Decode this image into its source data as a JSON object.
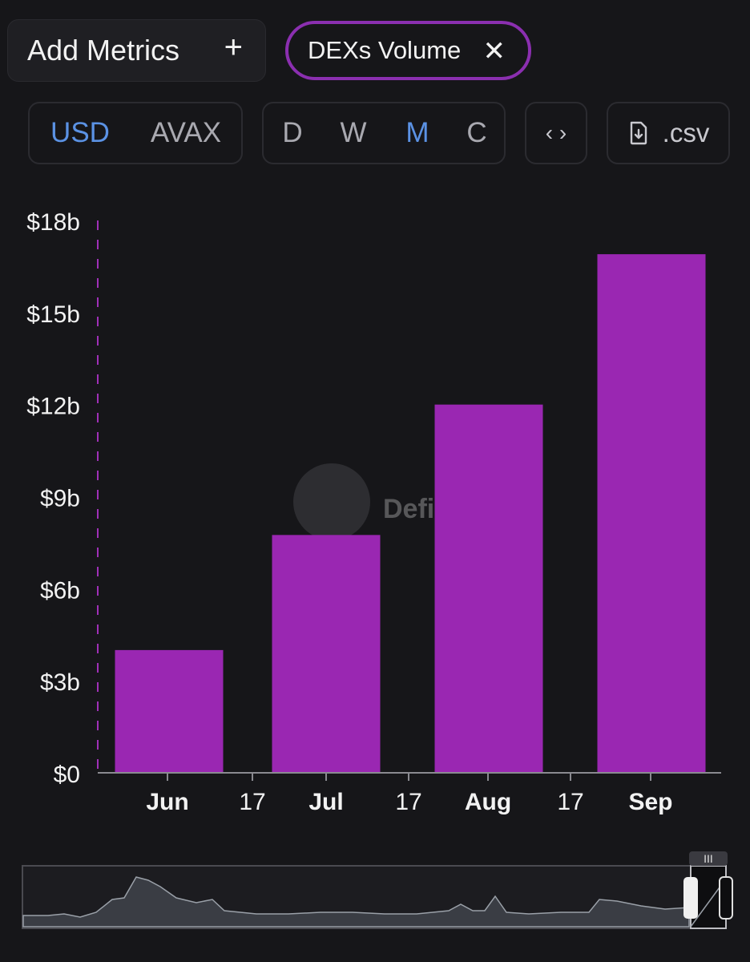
{
  "toolbar": {
    "add_metrics_label": "Add Metrics",
    "metric_chip_label": "DEXs Volume",
    "currency_options": [
      "USD",
      "AVAX"
    ],
    "currency_selected": "USD",
    "interval_options": [
      "D",
      "W",
      "M",
      "C"
    ],
    "interval_selected": "M",
    "embed_icon": "code-icon",
    "csv_label": ".csv"
  },
  "watermark": {
    "text": "DefiLlama"
  },
  "colors": {
    "bar": "#9a27b2",
    "accent": "#5b92e4",
    "chip_border": "#8b2fb0",
    "cursor_line": "#a030b8"
  },
  "chart_data": {
    "type": "bar",
    "title": "",
    "xlabel": "",
    "ylabel": "",
    "categories": [
      "Jun",
      "Jul",
      "Aug",
      "Sep"
    ],
    "values": [
      4.0,
      7.75,
      12.0,
      16.9
    ],
    "unit": "$b",
    "ylim": [
      0,
      18
    ],
    "yticks": [
      0,
      3,
      6,
      9,
      12,
      15,
      18
    ],
    "ytick_labels": [
      "$0",
      "$3b",
      "$6b",
      "$9b",
      "$12b",
      "$15b",
      "$18b"
    ],
    "xtick_labels": [
      "Jun",
      "17",
      "Jul",
      "17",
      "Aug",
      "17",
      "Sep"
    ],
    "grid": false,
    "legend": "none"
  }
}
